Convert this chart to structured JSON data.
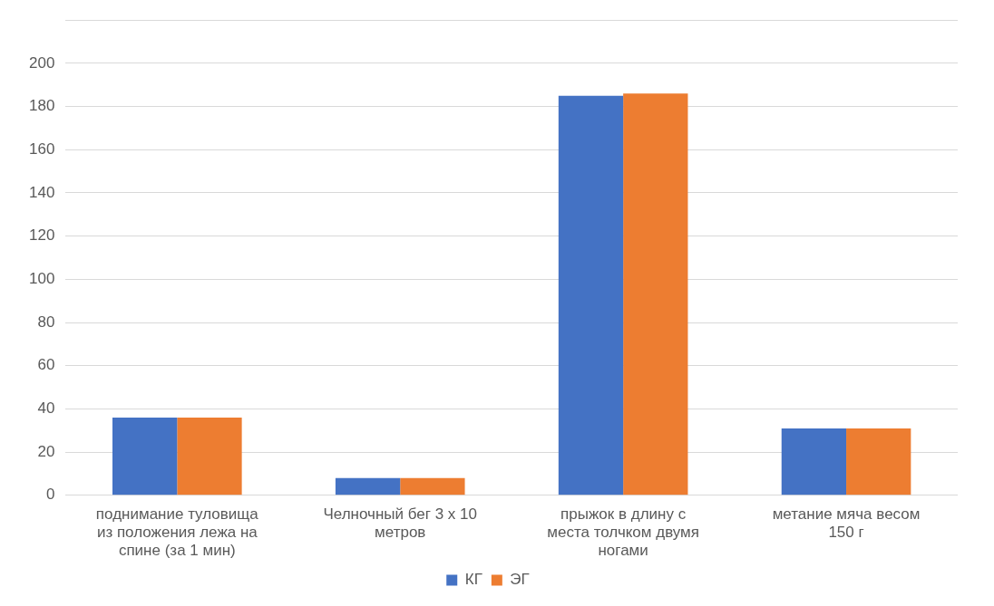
{
  "chart_data": {
    "type": "bar",
    "categories": [
      "поднимание туловища из положения лежа на спине (за 1 мин)",
      "Челночный бег 3 х 10 метров",
      "прыжок в длину с места толчком двумя ногами",
      "метание мяча весом 150 г"
    ],
    "series": [
      {
        "name": "КГ",
        "color": "#4472c4",
        "values": [
          36,
          8,
          185,
          31
        ]
      },
      {
        "name": "ЭГ",
        "color": "#ed7d31",
        "values": [
          36,
          8,
          186,
          31
        ]
      }
    ],
    "ylim": [
      0,
      220
    ],
    "yticks": [
      0,
      20,
      40,
      60,
      80,
      100,
      120,
      140,
      160,
      180,
      200,
      {
        "value": 220,
        "label": null
      }
    ],
    "grid": "y",
    "legend": "bottom"
  }
}
